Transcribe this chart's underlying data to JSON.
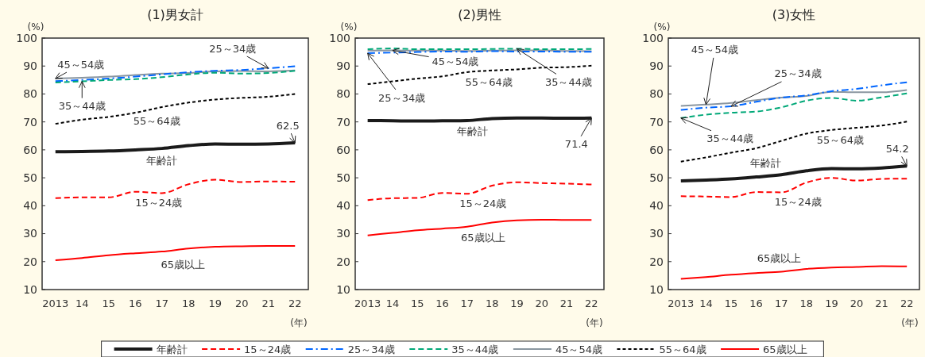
{
  "chart_data": [
    {
      "type": "line",
      "title": "(1)男女計",
      "ylabel": "(%)",
      "xlabel": "(年)",
      "categories": [
        "2013",
        "14",
        "15",
        "16",
        "17",
        "18",
        "19",
        "20",
        "21",
        "22"
      ],
      "ylim": [
        10,
        100
      ],
      "yticks": [
        10,
        20,
        30,
        40,
        50,
        60,
        70,
        80,
        90,
        100
      ],
      "grid": false,
      "legend": "bottom",
      "series": [
        {
          "name": "年齢計",
          "color": "#1a1a1a",
          "line_style": "solid",
          "values": [
            59.3,
            59.4,
            59.6,
            60.0,
            60.5,
            61.5,
            62.1,
            62.0,
            62.1,
            62.5
          ]
        },
        {
          "name": "15～24歳",
          "color": "#ff0000",
          "line_style": "dashed",
          "values": [
            42.7,
            43.0,
            43.0,
            45.0,
            44.5,
            47.7,
            49.3,
            48.5,
            48.7,
            48.6
          ]
        },
        {
          "name": "25～34歳",
          "color": "#0066ff",
          "line_style": "dashdot",
          "values": [
            84.6,
            85.0,
            85.5,
            86.2,
            87.0,
            87.8,
            88.3,
            88.6,
            89.2,
            89.9
          ]
        },
        {
          "name": "35～44歳",
          "color": "#00a878",
          "line_style": "dashed",
          "values": [
            84.1,
            84.5,
            85.0,
            85.3,
            86.0,
            87.0,
            87.6,
            87.3,
            87.5,
            88.3
          ]
        },
        {
          "name": "45～54歳",
          "color": "#8a96a0",
          "line_style": "solid",
          "values": [
            85.5,
            85.8,
            86.2,
            86.8,
            87.3,
            87.5,
            88.1,
            88.2,
            88.1,
            88.4
          ]
        },
        {
          "name": "55～64歳",
          "color": "#000000",
          "line_style": "dotted",
          "values": [
            69.3,
            70.8,
            71.8,
            73.3,
            75.3,
            76.9,
            78.0,
            78.6,
            79.0,
            80.0
          ]
        },
        {
          "name": "65歳以上",
          "color": "#ff0000",
          "line_style": "solid",
          "values": [
            20.5,
            21.3,
            22.3,
            23.0,
            23.6,
            24.7,
            25.3,
            25.5,
            25.6,
            25.6
          ]
        }
      ],
      "annotations": [
        {
          "text": "62.5",
          "x": "22",
          "y": 62.5
        }
      ]
    },
    {
      "type": "line",
      "title": "(2)男性",
      "ylabel": "(%)",
      "xlabel": "(年)",
      "categories": [
        "2013",
        "14",
        "15",
        "16",
        "17",
        "18",
        "19",
        "20",
        "21",
        "22"
      ],
      "ylim": [
        10,
        100
      ],
      "yticks": [
        10,
        20,
        30,
        40,
        50,
        60,
        70,
        80,
        90,
        100
      ],
      "grid": false,
      "series": [
        {
          "name": "年齢計",
          "color": "#1a1a1a",
          "line_style": "solid",
          "values": [
            70.5,
            70.4,
            70.3,
            70.4,
            70.5,
            71.2,
            71.4,
            71.4,
            71.3,
            71.4
          ]
        },
        {
          "name": "15～24歳",
          "color": "#ff0000",
          "line_style": "dashed",
          "values": [
            42.0,
            42.7,
            42.8,
            44.6,
            44.3,
            47.2,
            48.4,
            48.1,
            47.9,
            47.6
          ]
        },
        {
          "name": "25～34歳",
          "color": "#0066ff",
          "line_style": "dashdot",
          "values": [
            94.6,
            94.8,
            95.0,
            95.2,
            95.1,
            95.3,
            95.2,
            95.2,
            95.1,
            95.1
          ]
        },
        {
          "name": "35～44歳",
          "color": "#00a878",
          "line_style": "dashed",
          "values": [
            96.0,
            96.3,
            96.0,
            96.0,
            96.0,
            96.1,
            96.2,
            96.0,
            96.0,
            96.1
          ]
        },
        {
          "name": "45～54歳",
          "color": "#8a96a0",
          "line_style": "solid",
          "values": [
            95.5,
            95.6,
            95.5,
            95.5,
            95.4,
            95.5,
            95.6,
            95.6,
            95.4,
            95.3
          ]
        },
        {
          "name": "55～64歳",
          "color": "#000000",
          "line_style": "dotted",
          "values": [
            83.5,
            84.5,
            85.5,
            86.3,
            87.8,
            88.4,
            88.8,
            89.4,
            89.6,
            90.1
          ]
        },
        {
          "name": "65歳以上",
          "color": "#ff0000",
          "line_style": "solid",
          "values": [
            29.4,
            30.3,
            31.2,
            31.8,
            32.5,
            34.0,
            34.8,
            35.0,
            34.9,
            34.9
          ]
        }
      ],
      "annotations": [
        {
          "text": "71.4",
          "x": "22",
          "y": 71.4
        }
      ]
    },
    {
      "type": "line",
      "title": "(3)女性",
      "ylabel": "(%)",
      "xlabel": "(年)",
      "categories": [
        "2013",
        "14",
        "15",
        "16",
        "17",
        "18",
        "19",
        "20",
        "21",
        "22"
      ],
      "ylim": [
        10,
        100
      ],
      "yticks": [
        10,
        20,
        30,
        40,
        50,
        60,
        70,
        80,
        90,
        100
      ],
      "grid": false,
      "series": [
        {
          "name": "年齢計",
          "color": "#1a1a1a",
          "line_style": "solid",
          "values": [
            48.9,
            49.2,
            49.6,
            50.3,
            51.1,
            52.5,
            53.3,
            53.2,
            53.5,
            54.2
          ]
        },
        {
          "name": "15～24歳",
          "color": "#ff0000",
          "line_style": "dashed",
          "values": [
            43.4,
            43.3,
            43.1,
            44.9,
            44.8,
            48.3,
            50.0,
            49.0,
            49.6,
            49.7
          ]
        },
        {
          "name": "25～34歳",
          "color": "#0066ff",
          "line_style": "dashdot",
          "values": [
            74.3,
            75.1,
            75.6,
            77.2,
            78.7,
            79.5,
            81.0,
            81.8,
            83.1,
            84.2
          ]
        },
        {
          "name": "35～44歳",
          "color": "#00a878",
          "line_style": "dashed",
          "values": [
            71.4,
            72.6,
            73.3,
            73.7,
            75.2,
            77.6,
            78.6,
            77.6,
            78.8,
            80.2
          ]
        },
        {
          "name": "45～54歳",
          "color": "#8a96a0",
          "line_style": "solid",
          "values": [
            75.7,
            76.2,
            76.8,
            77.8,
            78.7,
            79.3,
            80.8,
            80.6,
            80.6,
            81.4
          ]
        },
        {
          "name": "55～64歳",
          "color": "#000000",
          "line_style": "dotted",
          "values": [
            55.8,
            57.3,
            59.0,
            60.6,
            63.2,
            65.8,
            67.1,
            67.9,
            68.7,
            70.1
          ]
        },
        {
          "name": "65歳以上",
          "color": "#ff0000",
          "line_style": "solid",
          "values": [
            13.8,
            14.5,
            15.3,
            15.9,
            16.4,
            17.4,
            17.9,
            18.1,
            18.4,
            18.3
          ]
        }
      ],
      "annotations": [
        {
          "text": "54.2",
          "x": "22",
          "y": 54.2
        }
      ]
    }
  ]
}
